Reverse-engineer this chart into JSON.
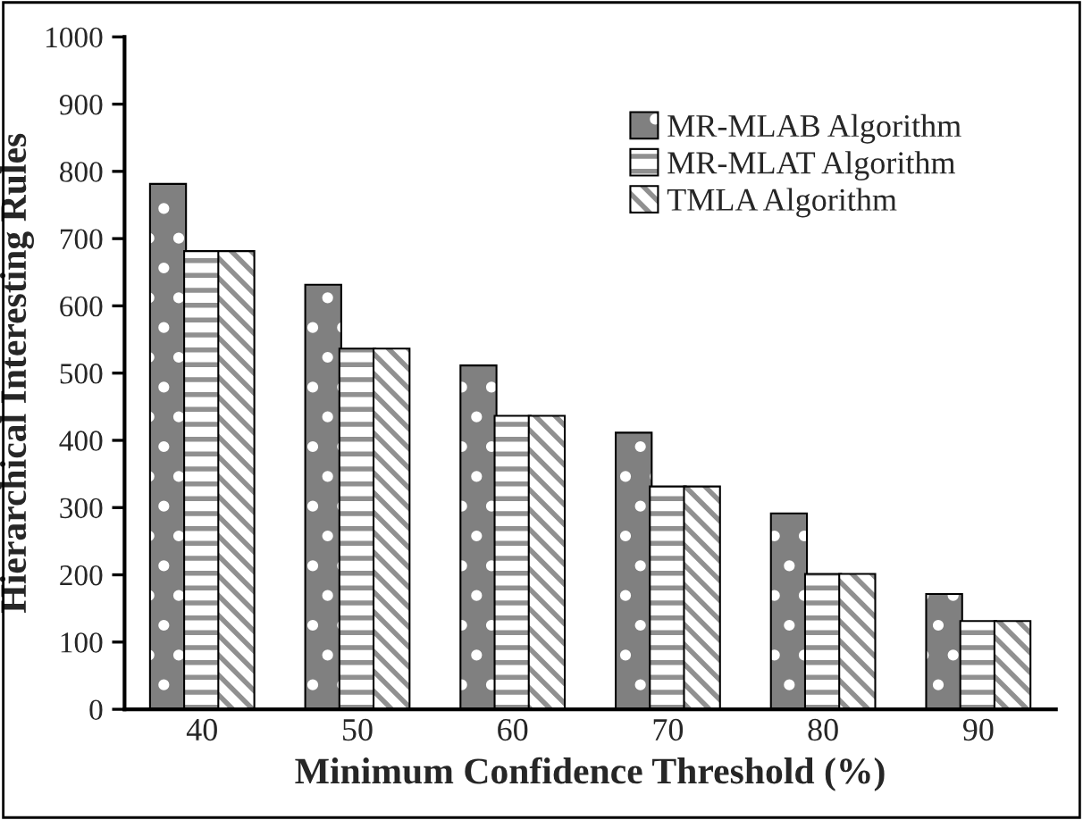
{
  "chart_data": {
    "type": "bar",
    "xlabel": "Minimum Confidence Threshold (%)",
    "ylabel": "Hierarchical Interesting Rules",
    "categories": [
      "40",
      "50",
      "60",
      "70",
      "80",
      "90"
    ],
    "series": [
      {
        "name": "MR-MLAB Algorithm",
        "color": "#808080",
        "values": [
          780,
          630,
          510,
          410,
          290,
          170
        ]
      },
      {
        "name": "MR-MLAT Algorithm",
        "color": "#ffffff",
        "values": [
          680,
          535,
          435,
          330,
          200,
          130
        ]
      },
      {
        "name": "TMLA Algorithm",
        "color": "#ffffff",
        "values": [
          680,
          535,
          435,
          330,
          200,
          130
        ]
      }
    ],
    "ylim": [
      0,
      1000
    ],
    "yticks": [
      0,
      100,
      200,
      300,
      400,
      500,
      600,
      700,
      800,
      900,
      1000
    ],
    "grid": false,
    "legend": "top right"
  }
}
